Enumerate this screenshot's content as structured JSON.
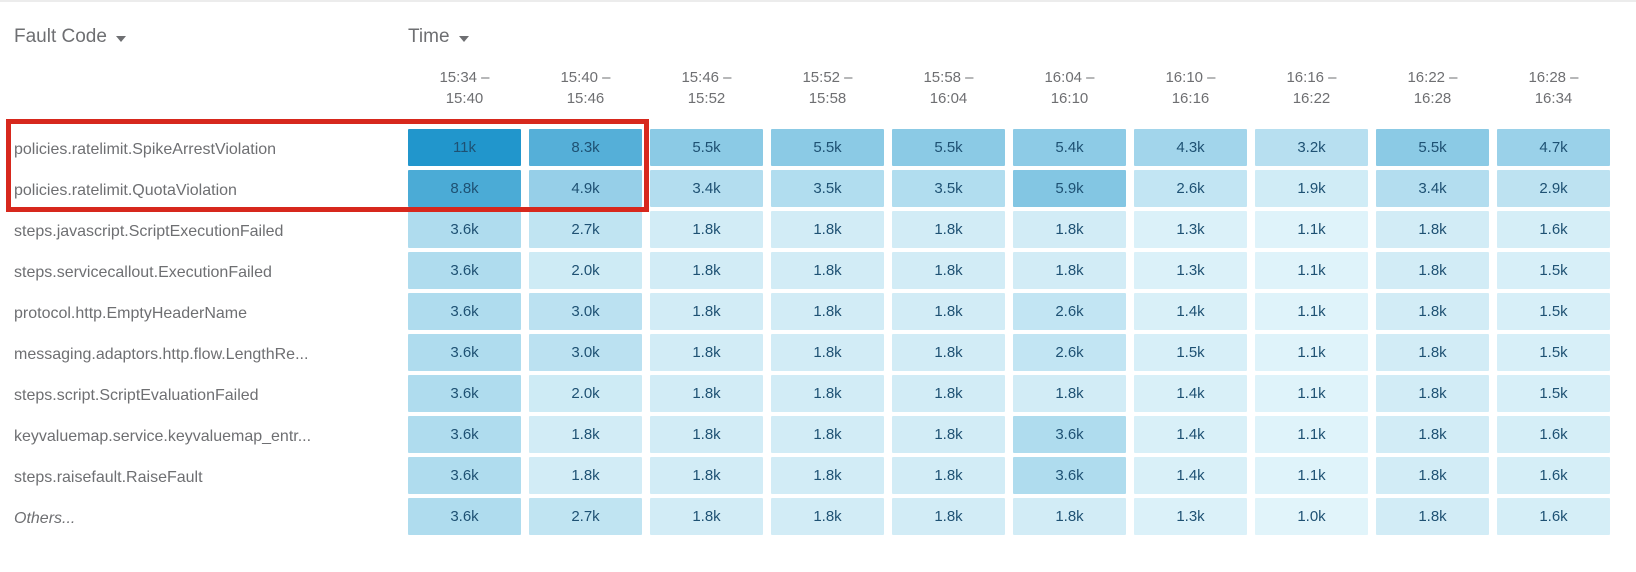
{
  "header": {
    "row_dimension": {
      "label": "Fault Code"
    },
    "column_dimension": {
      "label": "Time"
    }
  },
  "colors": {
    "cell_min": "#e1f4fa",
    "cell_max": "#2196cc",
    "cell_text": "#1e5173",
    "label_text": "#6e6f72",
    "highlight_border": "#d7281d"
  },
  "chart_data": {
    "type": "heatmap",
    "xlabel": "Time",
    "ylabel": "Fault Code",
    "columns": [
      "15:34 –\n15:40",
      "15:40 –\n15:46",
      "15:46 –\n15:52",
      "15:52 –\n15:58",
      "15:58 –\n16:04",
      "16:04 –\n16:10",
      "16:10 –\n16:16",
      "16:16 –\n16:22",
      "16:22 –\n16:28",
      "16:28 –\n16:34"
    ],
    "rows": [
      {
        "label": "policies.ratelimit.SpikeArrestViolation",
        "italic": false,
        "values": [
          "11k",
          "8.3k",
          "5.5k",
          "5.5k",
          "5.5k",
          "5.4k",
          "4.3k",
          "3.2k",
          "5.5k",
          "4.7k"
        ]
      },
      {
        "label": "policies.ratelimit.QuotaViolation",
        "italic": false,
        "values": [
          "8.8k",
          "4.9k",
          "3.4k",
          "3.5k",
          "3.5k",
          "5.9k",
          "2.6k",
          "1.9k",
          "3.4k",
          "2.9k"
        ]
      },
      {
        "label": "steps.javascript.ScriptExecutionFailed",
        "italic": false,
        "values": [
          "3.6k",
          "2.7k",
          "1.8k",
          "1.8k",
          "1.8k",
          "1.8k",
          "1.3k",
          "1.1k",
          "1.8k",
          "1.6k"
        ]
      },
      {
        "label": "steps.servicecallout.ExecutionFailed",
        "italic": false,
        "values": [
          "3.6k",
          "2.0k",
          "1.8k",
          "1.8k",
          "1.8k",
          "1.8k",
          "1.3k",
          "1.1k",
          "1.8k",
          "1.5k"
        ]
      },
      {
        "label": "protocol.http.EmptyHeaderName",
        "italic": false,
        "values": [
          "3.6k",
          "3.0k",
          "1.8k",
          "1.8k",
          "1.8k",
          "2.6k",
          "1.4k",
          "1.1k",
          "1.8k",
          "1.5k"
        ]
      },
      {
        "label": "messaging.adaptors.http.flow.LengthRe...",
        "italic": false,
        "values": [
          "3.6k",
          "3.0k",
          "1.8k",
          "1.8k",
          "1.8k",
          "2.6k",
          "1.5k",
          "1.1k",
          "1.8k",
          "1.5k"
        ]
      },
      {
        "label": "steps.script.ScriptEvaluationFailed",
        "italic": false,
        "values": [
          "3.6k",
          "2.0k",
          "1.8k",
          "1.8k",
          "1.8k",
          "1.8k",
          "1.4k",
          "1.1k",
          "1.8k",
          "1.5k"
        ]
      },
      {
        "label": "keyvaluemap.service.keyvaluemap_entr...",
        "italic": false,
        "values": [
          "3.6k",
          "1.8k",
          "1.8k",
          "1.8k",
          "1.8k",
          "3.6k",
          "1.4k",
          "1.1k",
          "1.8k",
          "1.6k"
        ]
      },
      {
        "label": "steps.raisefault.RaiseFault",
        "italic": false,
        "values": [
          "3.6k",
          "1.8k",
          "1.8k",
          "1.8k",
          "1.8k",
          "3.6k",
          "1.4k",
          "1.1k",
          "1.8k",
          "1.6k"
        ]
      },
      {
        "label": "Others...",
        "italic": true,
        "values": [
          "3.6k",
          "2.7k",
          "1.8k",
          "1.8k",
          "1.8k",
          "1.8k",
          "1.3k",
          "1.0k",
          "1.8k",
          "1.6k"
        ]
      }
    ],
    "color_scale": {
      "min_value": 1000,
      "max_value": 11000,
      "min_color": "#e1f4fa",
      "max_color": "#2196cc"
    },
    "highlight": {
      "row_indices": [
        0,
        1
      ],
      "column_indices": [
        0,
        1
      ],
      "border_color": "#d7281d"
    }
  }
}
